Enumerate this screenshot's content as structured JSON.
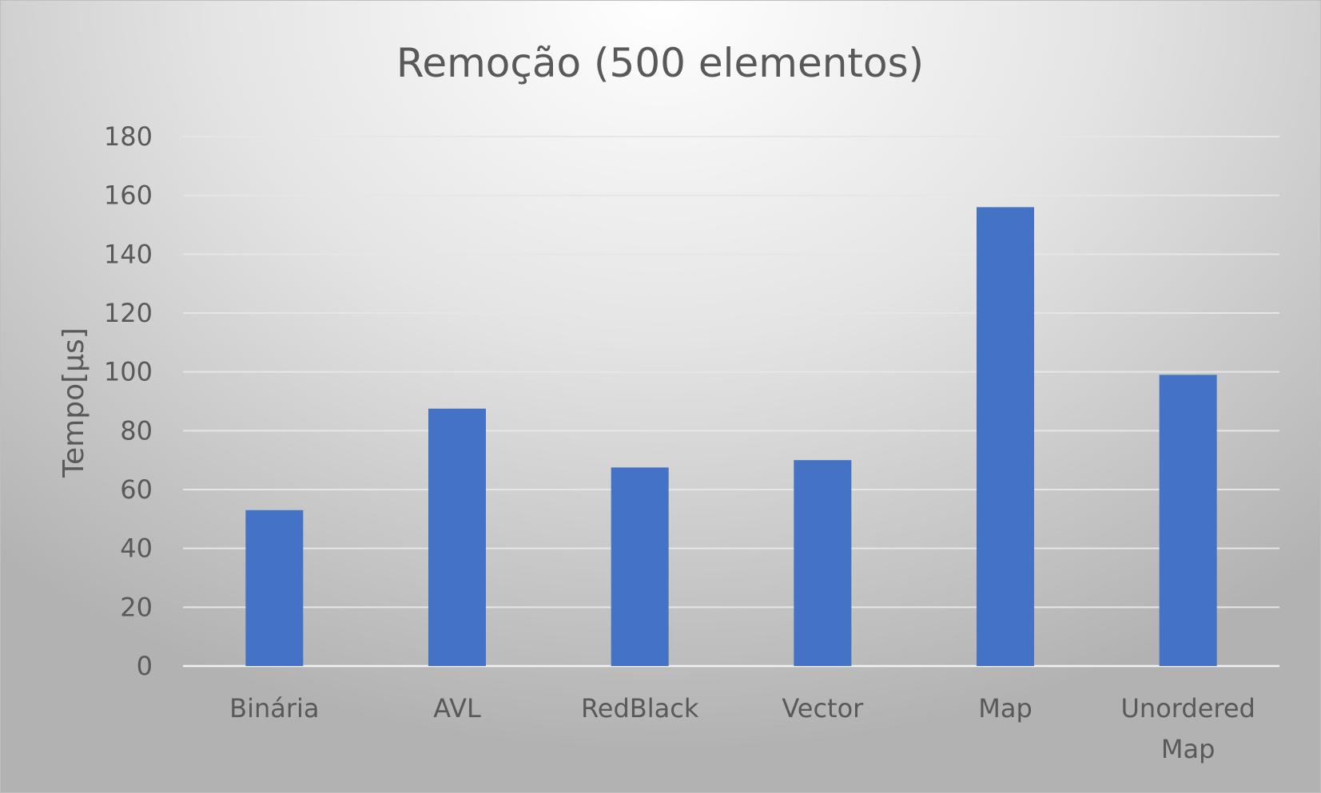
{
  "chart_data": {
    "type": "bar",
    "title": "Remoção (500 elementos)",
    "xlabel": "",
    "ylabel": "Tempo[µs]",
    "categories": [
      "Binária",
      "AVL",
      "RedBlack",
      "Vector",
      "Map",
      "Unordered Map"
    ],
    "values": [
      53,
      87.5,
      67.5,
      70,
      156,
      99
    ],
    "ylim": [
      0,
      180
    ],
    "yticks": [
      0,
      20,
      40,
      60,
      80,
      100,
      120,
      140,
      160,
      180
    ],
    "grid": true,
    "legend": "none",
    "colors": {
      "bar": "#4472C4"
    }
  }
}
